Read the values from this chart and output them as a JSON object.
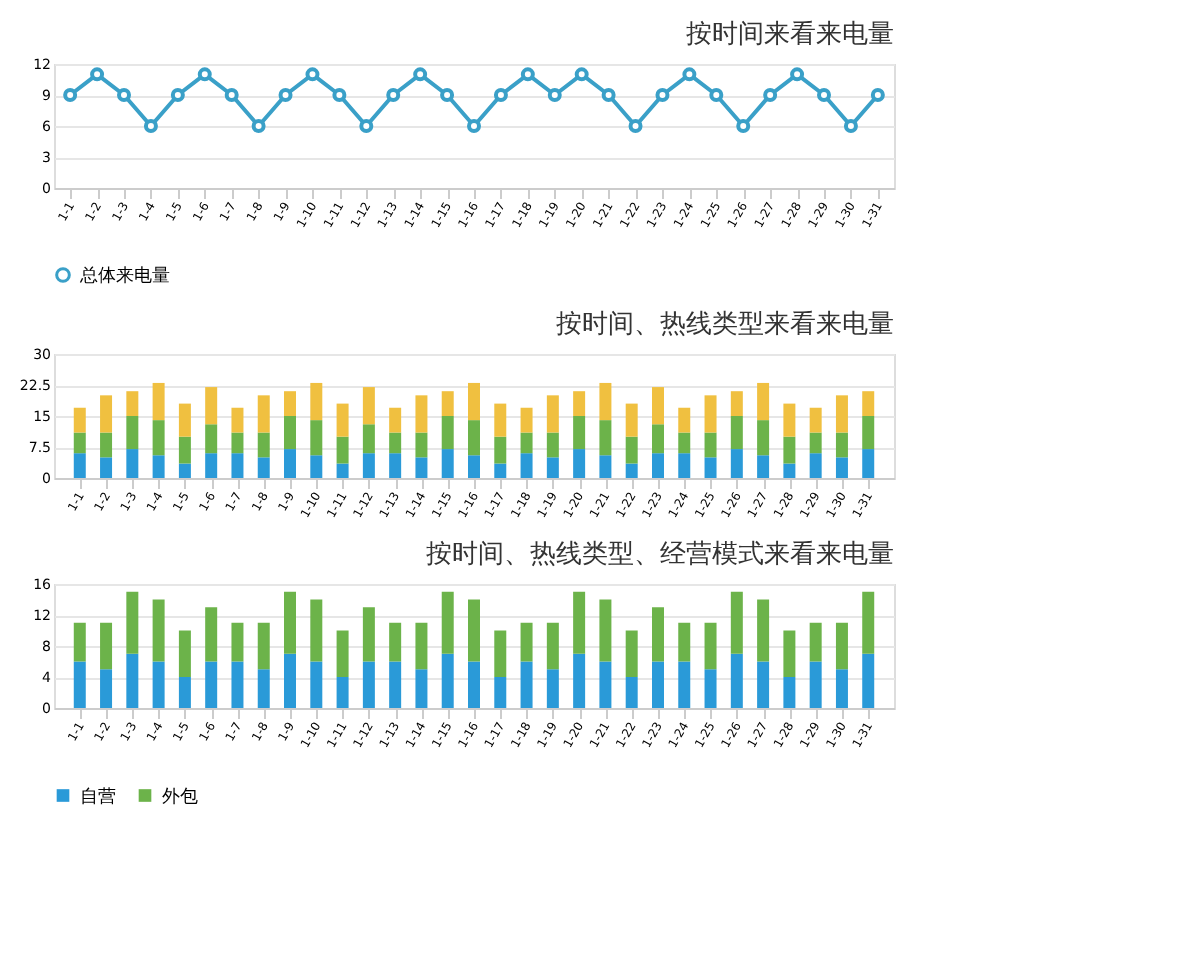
{
  "chart_data": [
    {
      "type": "line",
      "title": "按时间来看来电量",
      "categories": [
        "1-1",
        "1-2",
        "1-3",
        "1-4",
        "1-5",
        "1-6",
        "1-7",
        "1-8",
        "1-9",
        "1-10",
        "1-11",
        "1-12",
        "1-13",
        "1-14",
        "1-15",
        "1-16",
        "1-17",
        "1-18",
        "1-19",
        "1-20",
        "1-21",
        "1-22",
        "1-23",
        "1-24",
        "1-25",
        "1-26",
        "1-27",
        "1-28",
        "1-29",
        "1-30",
        "1-31"
      ],
      "series": [
        {
          "name": "总体来电量",
          "color": "#3aa0c8",
          "values": [
            9,
            11,
            9,
            6,
            9,
            11,
            9,
            6,
            9,
            11,
            9,
            6,
            9,
            11,
            9,
            6,
            9,
            11,
            9,
            11,
            9,
            6,
            9,
            11,
            9,
            6,
            9,
            11,
            9,
            6,
            9
          ]
        }
      ],
      "ylim": [
        0,
        12
      ],
      "yticks": [
        0,
        3,
        6,
        9,
        12
      ],
      "grid": "y",
      "legend": "bottom",
      "marker": "circle"
    },
    {
      "type": "bar",
      "title": "按时间、热线类型来看来电量",
      "stacked": true,
      "categories": [
        "1-1",
        "1-2",
        "1-3",
        "1-4",
        "1-5",
        "1-6",
        "1-7",
        "1-8",
        "1-9",
        "1-10",
        "1-11",
        "1-12",
        "1-13",
        "1-14",
        "1-15",
        "1-16",
        "1-17",
        "1-18",
        "1-19",
        "1-20",
        "1-21",
        "1-22",
        "1-23",
        "1-24",
        "1-25",
        "1-26",
        "1-27",
        "1-28",
        "1-29",
        "1-30",
        "1-31"
      ],
      "series": [
        {
          "color": "#2a9ad8",
          "values": [
            6,
            5,
            7,
            5.5,
            3.5,
            6,
            6,
            5,
            7,
            5.5,
            3.5,
            6,
            6,
            5,
            7,
            5.5,
            3.5,
            6,
            5,
            7,
            5.5,
            3.5,
            6,
            6,
            5,
            7,
            5.5,
            3.5,
            6,
            5,
            7
          ]
        },
        {
          "color": "#6cb34a",
          "values": [
            5,
            6,
            8,
            8.5,
            6.5,
            7,
            5,
            6,
            8,
            8.5,
            6.5,
            7,
            5,
            6,
            8,
            8.5,
            6.5,
            5,
            6,
            8,
            8.5,
            6.5,
            7,
            5,
            6,
            8,
            8.5,
            6.5,
            5,
            6,
            8
          ]
        },
        {
          "color": "#f0c040",
          "values": [
            6,
            9,
            6,
            9,
            8,
            9,
            6,
            9,
            6,
            9,
            8,
            9,
            6,
            9,
            6,
            9,
            8,
            6,
            9,
            6,
            9,
            8,
            9,
            6,
            9,
            6,
            9,
            8,
            6,
            9,
            6
          ]
        }
      ],
      "ylim": [
        0,
        30
      ],
      "yticks": [
        0,
        7.5,
        15,
        22.5,
        30
      ],
      "grid": "y"
    },
    {
      "type": "bar",
      "title": "按时间、热线类型、经营模式来看来电量",
      "stacked": true,
      "categories": [
        "1-1",
        "1-2",
        "1-3",
        "1-4",
        "1-5",
        "1-6",
        "1-7",
        "1-8",
        "1-9",
        "1-10",
        "1-11",
        "1-12",
        "1-13",
        "1-14",
        "1-15",
        "1-16",
        "1-17",
        "1-18",
        "1-19",
        "1-20",
        "1-21",
        "1-22",
        "1-23",
        "1-24",
        "1-25",
        "1-26",
        "1-27",
        "1-28",
        "1-29",
        "1-30",
        "1-31"
      ],
      "series": [
        {
          "name": "自营",
          "color": "#2a9ad8",
          "values": [
            6,
            5,
            7,
            6,
            4,
            6,
            6,
            5,
            7,
            6,
            4,
            6,
            6,
            5,
            7,
            6,
            4,
            6,
            5,
            7,
            6,
            4,
            6,
            6,
            5,
            7,
            6,
            4,
            6,
            5,
            7
          ]
        },
        {
          "name": "外包",
          "color": "#6cb34a",
          "values": [
            5,
            6,
            8,
            8,
            6,
            7,
            5,
            6,
            8,
            8,
            6,
            7,
            5,
            6,
            8,
            8,
            6,
            5,
            6,
            8,
            8,
            6,
            7,
            5,
            6,
            8,
            8,
            6,
            5,
            6,
            8
          ]
        }
      ],
      "ylim": [
        0,
        16
      ],
      "yticks": [
        0,
        4,
        8,
        12,
        16
      ],
      "grid": "y",
      "legend": "bottom"
    }
  ]
}
